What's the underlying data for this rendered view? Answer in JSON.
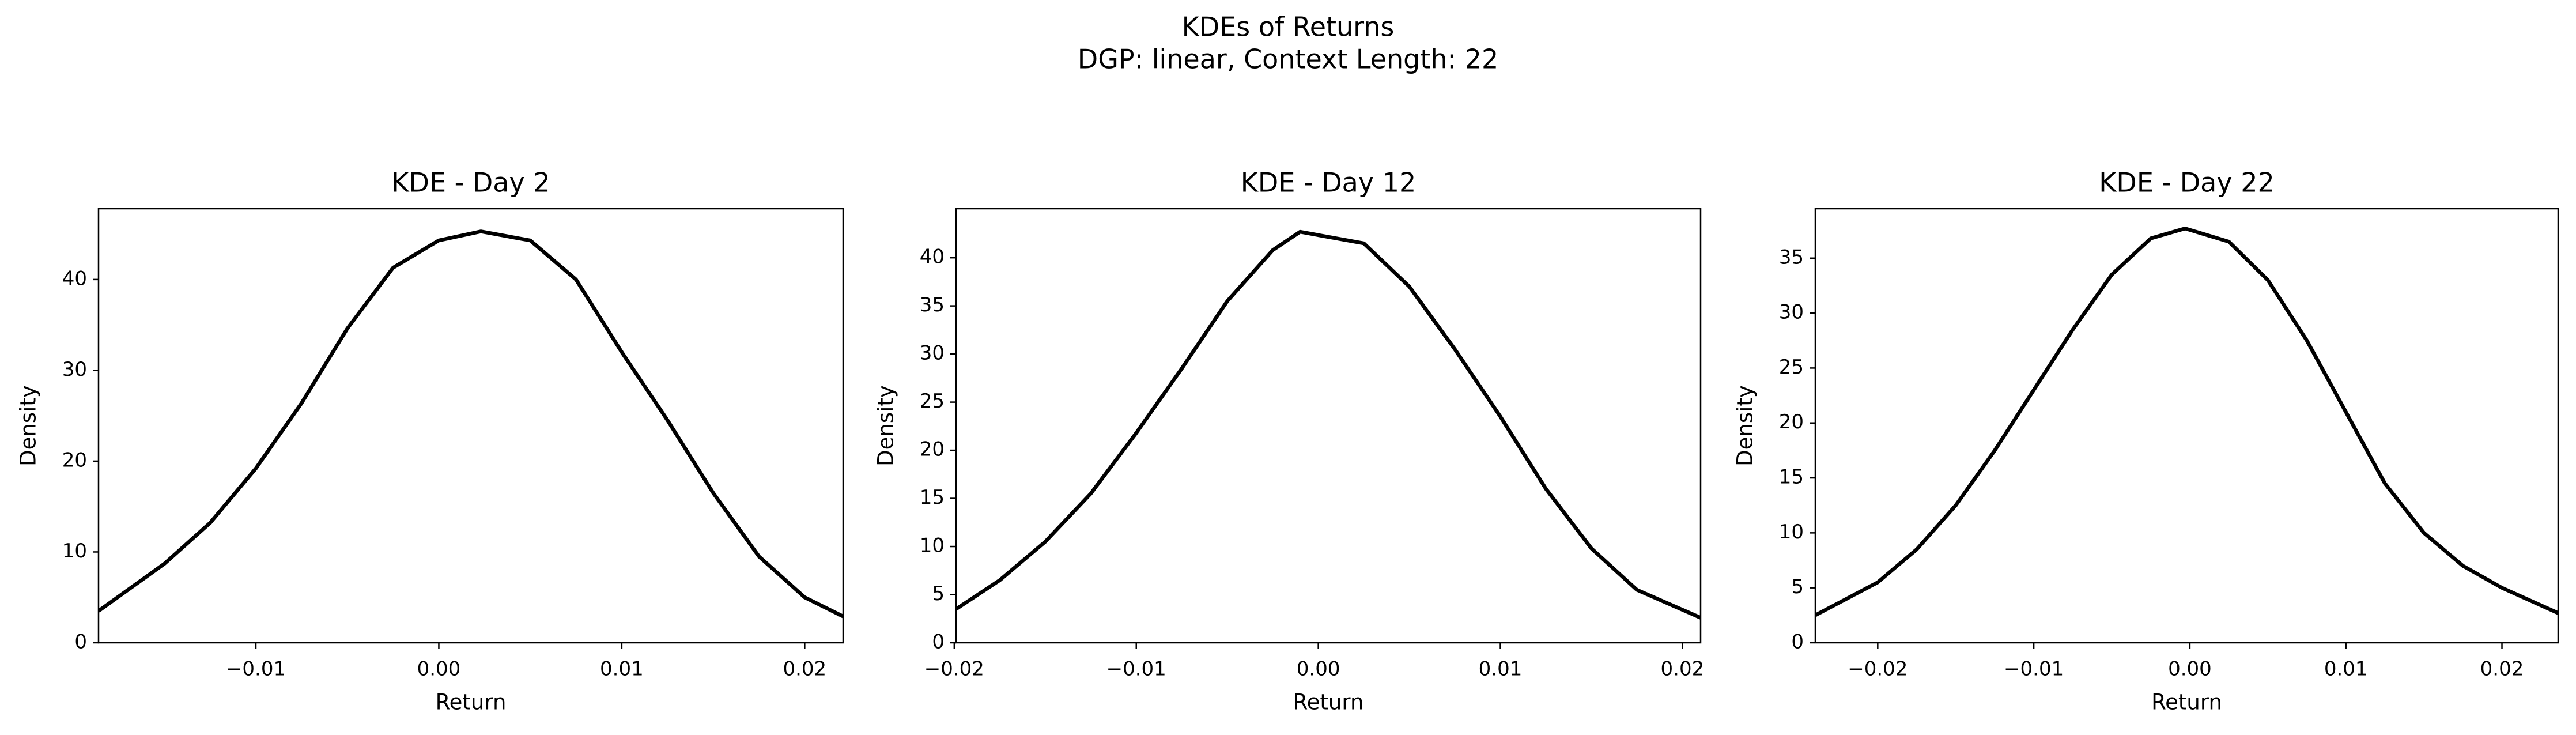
{
  "title": "KDEs of Returns",
  "subtitle": "DGP: linear, Context Length: 22",
  "chart_data": [
    {
      "type": "line",
      "title": "KDE - Day 2",
      "xlabel": "Return",
      "ylabel": "Density",
      "color": "#000000",
      "x": [
        -0.0186,
        -0.015,
        -0.0125,
        -0.01,
        -0.0075,
        -0.005,
        -0.0025,
        0,
        0.0023,
        0.005,
        0.0075,
        0.01,
        0.0125,
        0.015,
        0.0175,
        0.02,
        0.0221
      ],
      "values": [
        3.5,
        8.7,
        13.2,
        19.2,
        26.4,
        34.6,
        41.3,
        44.3,
        45.3,
        44.3,
        40.0,
        32.0,
        24.5,
        16.5,
        9.5,
        5.0,
        2.9
      ],
      "xlim": [
        -0.0186,
        0.0221
      ],
      "ylim": [
        0,
        47.8
      ],
      "xticks": [
        {
          "value": -0.01,
          "label": "−0.01"
        },
        {
          "value": 0,
          "label": "0.00"
        },
        {
          "value": 0.01,
          "label": "0.01"
        },
        {
          "value": 0.02,
          "label": "0.02"
        }
      ],
      "yticks": [
        0,
        10,
        20,
        30,
        40
      ]
    },
    {
      "type": "line",
      "title": "KDE - Day 12",
      "xlabel": "Return",
      "ylabel": "Density",
      "color": "#000000",
      "x": [
        -0.0199,
        -0.0175,
        -0.015,
        -0.0125,
        -0.01,
        -0.0075,
        -0.005,
        -0.0025,
        -0.001,
        0.0025,
        0.005,
        0.0075,
        0.01,
        0.0125,
        0.015,
        0.0175,
        0.021
      ],
      "values": [
        3.5,
        6.5,
        10.5,
        15.5,
        21.8,
        28.5,
        35.5,
        40.8,
        42.7,
        41.5,
        37.0,
        30.5,
        23.5,
        16.0,
        9.8,
        5.5,
        2.6
      ],
      "xlim": [
        -0.0199,
        0.021
      ],
      "ylim": [
        0,
        45.1
      ],
      "xticks": [
        {
          "value": -0.02,
          "label": "−0.02"
        },
        {
          "value": -0.01,
          "label": "−0.01"
        },
        {
          "value": 0,
          "label": "0.00"
        },
        {
          "value": 0.01,
          "label": "0.01"
        },
        {
          "value": 0.02,
          "label": "0.02"
        }
      ],
      "yticks": [
        0,
        5,
        10,
        15,
        20,
        25,
        30,
        35,
        40
      ]
    },
    {
      "type": "line",
      "title": "KDE - Day 22",
      "xlabel": "Return",
      "ylabel": "Density",
      "color": "#000000",
      "x": [
        -0.024,
        -0.02,
        -0.0175,
        -0.015,
        -0.0125,
        -0.01,
        -0.0075,
        -0.005,
        -0.0025,
        -0.0003,
        0.0025,
        0.005,
        0.0075,
        0.01,
        0.0125,
        0.015,
        0.0175,
        0.02,
        0.0236
      ],
      "values": [
        2.5,
        5.5,
        8.5,
        12.5,
        17.5,
        23.0,
        28.5,
        33.5,
        36.8,
        37.7,
        36.5,
        33.0,
        27.5,
        21.0,
        14.5,
        10.0,
        7.0,
        5.0,
        2.7
      ],
      "xlim": [
        -0.024,
        0.0236
      ],
      "ylim": [
        0,
        39.5
      ],
      "xticks": [
        {
          "value": -0.02,
          "label": "−0.02"
        },
        {
          "value": -0.01,
          "label": "−0.01"
        },
        {
          "value": 0,
          "label": "0.00"
        },
        {
          "value": 0.01,
          "label": "0.01"
        },
        {
          "value": 0.02,
          "label": "0.02"
        }
      ],
      "yticks": [
        0,
        5,
        10,
        15,
        20,
        25,
        30,
        35
      ]
    }
  ]
}
